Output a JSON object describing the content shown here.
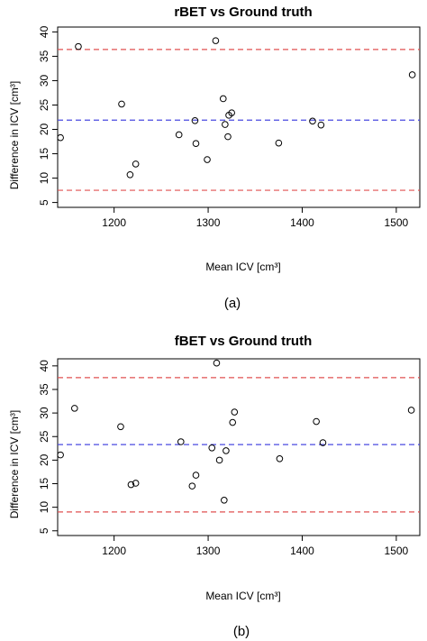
{
  "chart_data": [
    {
      "type": "scatter",
      "title": "rBET vs Ground truth",
      "xlabel": "Mean ICV [cm³]",
      "ylabel": "Difference in ICV [cm³]",
      "panel_label": "(a)",
      "xlim": [
        1140,
        1525
      ],
      "ylim": [
        4,
        41
      ],
      "xticks": [
        1200,
        1300,
        1400,
        1500
      ],
      "yticks": [
        5,
        10,
        15,
        20,
        25,
        30,
        35,
        40
      ],
      "points": [
        {
          "x": 1143,
          "y": 18.3
        },
        {
          "x": 1162,
          "y": 37.0
        },
        {
          "x": 1208,
          "y": 25.2
        },
        {
          "x": 1217,
          "y": 10.7
        },
        {
          "x": 1223,
          "y": 12.9
        },
        {
          "x": 1269,
          "y": 18.9
        },
        {
          "x": 1286,
          "y": 21.8
        },
        {
          "x": 1287,
          "y": 17.1
        },
        {
          "x": 1299,
          "y": 13.8
        },
        {
          "x": 1308,
          "y": 38.2
        },
        {
          "x": 1316,
          "y": 26.3
        },
        {
          "x": 1318,
          "y": 21.0
        },
        {
          "x": 1321,
          "y": 18.5
        },
        {
          "x": 1322,
          "y": 22.9
        },
        {
          "x": 1325,
          "y": 23.4
        },
        {
          "x": 1375,
          "y": 17.2
        },
        {
          "x": 1411,
          "y": 21.7
        },
        {
          "x": 1420,
          "y": 20.9
        },
        {
          "x": 1517,
          "y": 31.2
        }
      ],
      "hlines": [
        {
          "y": 36.4,
          "color": "#e05050"
        },
        {
          "y": 21.9,
          "color": "#4a4ae0"
        },
        {
          "y": 7.5,
          "color": "#e05050"
        }
      ]
    },
    {
      "type": "scatter",
      "title": "fBET vs Ground truth",
      "xlabel": "Mean ICV [cm³]",
      "ylabel": "Difference in ICV [cm³]",
      "panel_label": "(b)",
      "xlim": [
        1140,
        1525
      ],
      "ylim": [
        4,
        41.5
      ],
      "xticks": [
        1200,
        1300,
        1400,
        1500
      ],
      "yticks": [
        5,
        10,
        15,
        20,
        25,
        30,
        35,
        40
      ],
      "points": [
        {
          "x": 1143,
          "y": 21.1
        },
        {
          "x": 1158,
          "y": 31.0
        },
        {
          "x": 1207,
          "y": 27.1
        },
        {
          "x": 1218,
          "y": 14.8
        },
        {
          "x": 1223,
          "y": 15.1
        },
        {
          "x": 1271,
          "y": 23.9
        },
        {
          "x": 1283,
          "y": 14.5
        },
        {
          "x": 1287,
          "y": 16.8
        },
        {
          "x": 1304,
          "y": 22.6
        },
        {
          "x": 1309,
          "y": 40.6
        },
        {
          "x": 1312,
          "y": 20.0
        },
        {
          "x": 1317,
          "y": 11.5
        },
        {
          "x": 1319,
          "y": 22.0
        },
        {
          "x": 1326,
          "y": 28.0
        },
        {
          "x": 1328,
          "y": 30.2
        },
        {
          "x": 1376,
          "y": 20.3
        },
        {
          "x": 1415,
          "y": 28.2
        },
        {
          "x": 1422,
          "y": 23.7
        },
        {
          "x": 1516,
          "y": 30.6
        }
      ],
      "hlines": [
        {
          "y": 37.5,
          "color": "#e05050"
        },
        {
          "y": 23.3,
          "color": "#4a4ae0"
        },
        {
          "y": 9.0,
          "color": "#e05050"
        }
      ]
    }
  ]
}
